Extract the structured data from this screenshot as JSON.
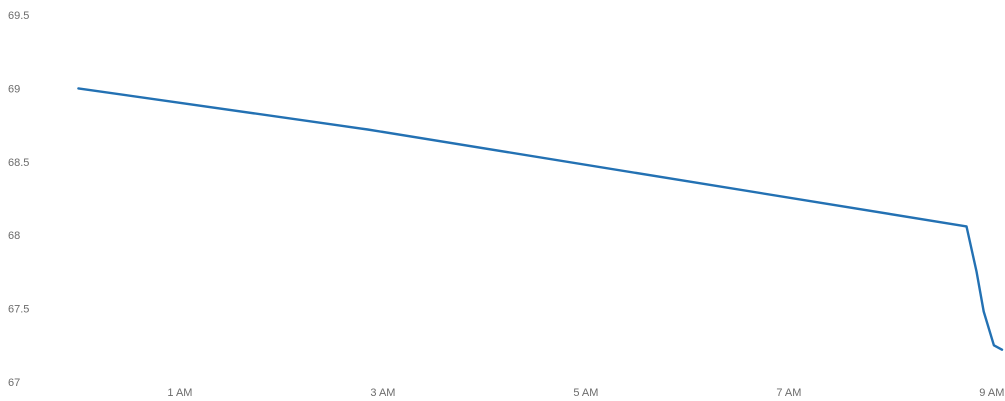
{
  "chart_data": {
    "type": "line",
    "title": "",
    "xlabel": "",
    "ylabel": "",
    "x_ticks": [
      {
        "x": 1,
        "label": "1 AM"
      },
      {
        "x": 3,
        "label": "3 AM"
      },
      {
        "x": 5,
        "label": "5 AM"
      },
      {
        "x": 7,
        "label": "7 AM"
      },
      {
        "x": 9,
        "label": "9 AM"
      }
    ],
    "y_ticks": [
      {
        "y": 69.5,
        "label": "69.5"
      },
      {
        "y": 69,
        "label": "69"
      },
      {
        "y": 68.5,
        "label": "68.5"
      },
      {
        "y": 68,
        "label": "68"
      },
      {
        "y": 67.5,
        "label": "67.5"
      },
      {
        "y": 67,
        "label": "67"
      }
    ],
    "xlim": [
      -0.3,
      9.1
    ],
    "ylim": [
      67,
      69.5
    ],
    "grid": false,
    "color": "#2371b3",
    "series": [
      {
        "values": [
          {
            "x": 0,
            "y": 69
          },
          {
            "x": 2.85,
            "y": 68.72
          },
          {
            "x": 8.75,
            "y": 68.06
          },
          {
            "x": 8.85,
            "y": 67.75
          },
          {
            "x": 8.92,
            "y": 67.48
          },
          {
            "x": 9.02,
            "y": 67.25
          },
          {
            "x": 9.1,
            "y": 67.22
          }
        ]
      }
    ]
  }
}
